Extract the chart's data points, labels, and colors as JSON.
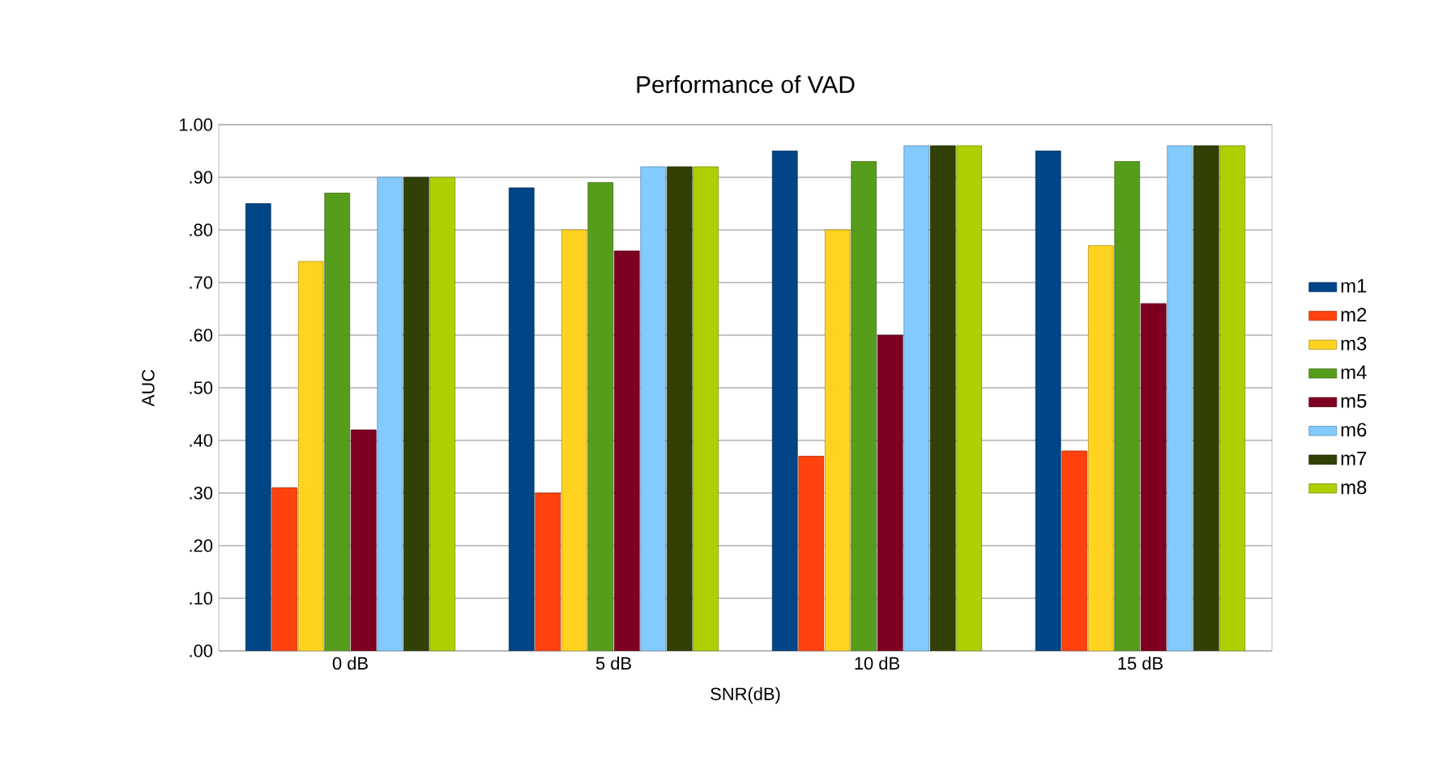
{
  "chart_data": {
    "type": "bar",
    "title": "Performance of VAD",
    "xlabel": "SNR(dB)",
    "ylabel": "AUC",
    "categories": [
      "0 dB",
      "5 dB",
      "10 dB",
      "15 dB"
    ],
    "series": [
      {
        "name": "m1",
        "color": "#004586",
        "values": [
          0.85,
          0.88,
          0.95,
          0.95
        ]
      },
      {
        "name": "m2",
        "color": "#ff420e",
        "values": [
          0.31,
          0.3,
          0.37,
          0.38
        ]
      },
      {
        "name": "m3",
        "color": "#ffd320",
        "values": [
          0.74,
          0.8,
          0.8,
          0.77
        ]
      },
      {
        "name": "m4",
        "color": "#579d1c",
        "values": [
          0.87,
          0.89,
          0.93,
          0.93
        ]
      },
      {
        "name": "m5",
        "color": "#7e0021",
        "values": [
          0.42,
          0.76,
          0.6,
          0.66
        ]
      },
      {
        "name": "m6",
        "color": "#83caff",
        "values": [
          0.9,
          0.92,
          0.96,
          0.96
        ]
      },
      {
        "name": "m7",
        "color": "#314004",
        "values": [
          0.9,
          0.92,
          0.96,
          0.96
        ]
      },
      {
        "name": "m8",
        "color": "#aecf00",
        "values": [
          0.9,
          0.92,
          0.96,
          0.96
        ]
      }
    ],
    "ylim": [
      0,
      1
    ],
    "yticks": [
      {
        "value": 0,
        "label": ".00"
      },
      {
        "value": 0.1,
        "label": ".10"
      },
      {
        "value": 0.2,
        "label": ".20"
      },
      {
        "value": 0.3,
        "label": ".30"
      },
      {
        "value": 0.4,
        "label": ".40"
      },
      {
        "value": 0.5,
        "label": ".50"
      },
      {
        "value": 0.6,
        "label": ".60"
      },
      {
        "value": 0.7,
        "label": ".70"
      },
      {
        "value": 0.8,
        "label": ".80"
      },
      {
        "value": 0.9,
        "label": ".90"
      },
      {
        "value": 1,
        "label": "1.00"
      }
    ],
    "grid": "y",
    "legend": "right"
  }
}
